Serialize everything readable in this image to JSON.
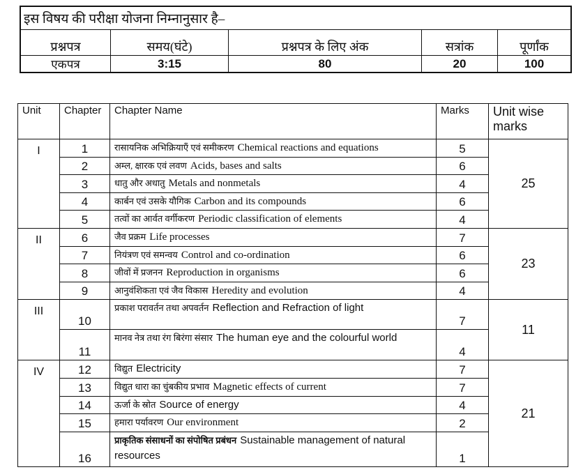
{
  "scheme": {
    "title": "इस विषय की परीक्षा योजना निम्नानुसार है–",
    "headers": [
      "प्रश्नपत्र",
      "समय(घंटे)",
      "प्रश्नपत्र के लिए अंक",
      "सत्रांक",
      "पूर्णांक"
    ],
    "values": [
      "एकपत्र",
      "3:15",
      "80",
      "20",
      "100"
    ]
  },
  "syllabus": {
    "headers": {
      "unit": "Unit",
      "chapter": "Chapter",
      "name": "Chapter Name",
      "marks": "Marks",
      "unit_wise": "Unit wise marks"
    },
    "units": [
      {
        "unit": "I",
        "unit_marks": "25",
        "chapters": [
          {
            "no": "1",
            "hi": "रासायनिक अभिक्रियाएँ एवं समीकरण",
            "en": "Chemical reactions and equations",
            "marks": "5"
          },
          {
            "no": "2",
            "hi": "अम्ल, क्षारक एवं लवण",
            "en": "Acids, bases and salts",
            "marks": "6"
          },
          {
            "no": "3",
            "hi": "धातु और अधातु",
            "en": "Metals and nonmetals",
            "marks": "4"
          },
          {
            "no": "4",
            "hi": "कार्बन एवं उसके यौगिक",
            "en": "Carbon and its compounds",
            "marks": "6"
          },
          {
            "no": "5",
            "hi": "तत्वों का आर्वत वर्गीकरण",
            "en": "Periodic classification of elements",
            "marks": "4"
          }
        ]
      },
      {
        "unit": "II",
        "unit_marks": "23",
        "chapters": [
          {
            "no": "6",
            "hi": "जैव प्रक्रम",
            "en": "Life processes",
            "marks": "7"
          },
          {
            "no": "7",
            "hi": "नियंत्रण एवं समन्वय",
            "en": "Control and co-ordination",
            "marks": "6"
          },
          {
            "no": "8",
            "hi": "जीवों में प्रजनन",
            "en": "Reproduction in organisms",
            "marks": "6"
          },
          {
            "no": "9",
            "hi": "आनुवंशिकता एवं जैव विकास",
            "en": "Heredity and evolution",
            "marks": "4"
          }
        ]
      },
      {
        "unit": "III",
        "unit_marks": "11",
        "chapters": [
          {
            "no": "10",
            "hi": "प्रकाश  परावर्तन तथा अपवर्तन",
            "en": "Reflection and Refraction of light",
            "marks": "7"
          },
          {
            "no": "11",
            "hi": "मानव नेत्र तथा रंग बिरंगा संसार",
            "en": "The human eye and the colourful world",
            "marks": "4"
          }
        ]
      },
      {
        "unit": "IV",
        "unit_marks": "21",
        "chapters": [
          {
            "no": "12",
            "hi": "विद्युत",
            "en": "Electricity",
            "marks": "7"
          },
          {
            "no": "13",
            "hi": "विद्युत धारा का चुंबकीय प्रभाव",
            "en": "Magnetic effects of current",
            "marks": "7"
          },
          {
            "no": "14",
            "hi": "ऊर्जा के स्रोत",
            "en": "Source of energy",
            "marks": "4"
          },
          {
            "no": "15",
            "hi": "हमारा पर्यावरण",
            "en": "Our environment",
            "marks": "2"
          },
          {
            "no": "16",
            "hi": "प्राकृतिक संसाधनों का संपोषित प्रबंधन",
            "en": "Sustainable management of natural resources",
            "marks": "1"
          }
        ]
      }
    ]
  }
}
